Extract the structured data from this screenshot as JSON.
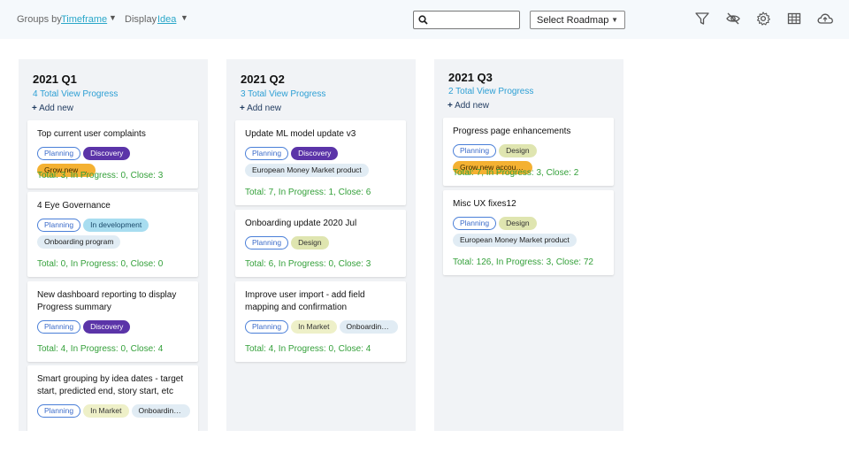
{
  "toolbar": {
    "groups_by_label": "Groups by",
    "groups_by_value": "Timeframe",
    "display_label": "Display",
    "display_value": "Idea",
    "search": {
      "value": "",
      "placeholder": ""
    },
    "roadmap_select": "Select Roadmap",
    "icons": [
      "filter-icon",
      "eye-off-icon",
      "gear-icon",
      "table-icon",
      "cloud-upload-icon"
    ]
  },
  "columns": [
    {
      "title": "2021 Q1",
      "total": "4 Total",
      "view_progress": "View Progress",
      "add_new": "Add new",
      "cards": [
        {
          "title": "Top current user complaints",
          "tags": [
            {
              "label": "Planning",
              "kind": "status"
            },
            {
              "label": "Discovery",
              "kind": "discovery"
            },
            {
              "label": "Grow new accounts",
              "kind": "grow"
            }
          ],
          "stats": "Total: 3,  In Progress: 0,  Close: 3"
        },
        {
          "title": "4 Eye Governance",
          "tags": [
            {
              "label": "Planning",
              "kind": "status"
            },
            {
              "label": "In development",
              "kind": "dev"
            },
            {
              "label": "Onboarding program",
              "kind": "onboard"
            }
          ],
          "stats": "Total: 0,  In Progress: 0,  Close: 0"
        },
        {
          "title": "New dashboard reporting to display Progress summary",
          "tags": [
            {
              "label": "Planning",
              "kind": "status"
            },
            {
              "label": "Discovery",
              "kind": "discovery"
            }
          ],
          "stats": "Total: 4,  In Progress: 0,  Close: 4"
        },
        {
          "title": "Smart grouping by idea dates - target start, predicted end, story start, etc",
          "tags": [
            {
              "label": "Planning",
              "kind": "status"
            },
            {
              "label": "In Market",
              "kind": "market"
            },
            {
              "label": "Onboarding program",
              "kind": "onboard-short"
            }
          ],
          "stats": ""
        }
      ]
    },
    {
      "title": "2021 Q2",
      "total": "3 Total",
      "view_progress": "View Progress",
      "add_new": "Add new",
      "cards": [
        {
          "title": "Update ML model update v3",
          "tags": [
            {
              "label": "Planning",
              "kind": "status"
            },
            {
              "label": "Discovery",
              "kind": "discovery"
            },
            {
              "label": "European Money Market product",
              "kind": "product"
            }
          ],
          "stats": "Total: 7,  In Progress: 1,  Close: 6"
        },
        {
          "title": "Onboarding update 2020 Jul",
          "tags": [
            {
              "label": "Planning",
              "kind": "status"
            },
            {
              "label": "Design",
              "kind": "design"
            }
          ],
          "stats": "Total: 6,  In Progress: 0,  Close: 3"
        },
        {
          "title": "Improve user import - add field mapping and confirmation",
          "tags": [
            {
              "label": "Planning",
              "kind": "status"
            },
            {
              "label": "In Market",
              "kind": "market"
            },
            {
              "label": "Onboarding program",
              "kind": "onboard-short"
            }
          ],
          "stats": "Total: 4,  In Progress: 0,  Close: 4"
        }
      ]
    },
    {
      "title": "2021 Q3",
      "total": "2 Total",
      "view_progress": "View Progress",
      "add_new": "Add new",
      "cards": [
        {
          "title": "Progress page enhancements",
          "tags": [
            {
              "label": "Planning",
              "kind": "status"
            },
            {
              "label": "Design",
              "kind": "design"
            },
            {
              "label": "Grow new accounts",
              "kind": "grow"
            }
          ],
          "stats": "Total: 7,  In Progress: 3,  Close: 2"
        },
        {
          "title": "Misc UX fixes12",
          "tags": [
            {
              "label": "Planning",
              "kind": "status"
            },
            {
              "label": "Design",
              "kind": "design"
            },
            {
              "label": "European Money Market product",
              "kind": "product"
            }
          ],
          "stats": "Total: 126,  In Progress: 3,  Close: 72"
        }
      ]
    }
  ]
}
